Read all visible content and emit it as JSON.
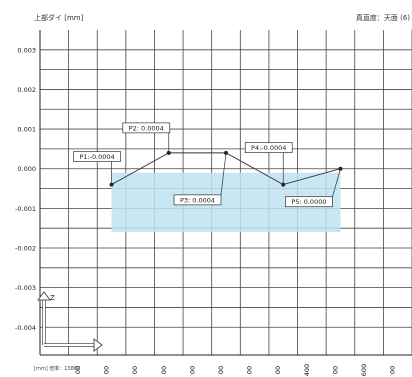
{
  "header": {
    "left_label": "上部ダイ  [mm]",
    "right_label": "真直度：天面  (6)"
  },
  "footer": {
    "scale_label": "[mm]  倍率：13860"
  },
  "chart_data": {
    "type": "line",
    "y_ticks": [
      "0.003",
      "0.002",
      "0.001",
      "0.000",
      "-0.001",
      "-0.002",
      "-0.003",
      "-0.004"
    ],
    "x_tick_labels": [
      "00",
      "00",
      "00",
      "00",
      "00",
      "00",
      "00",
      "00",
      "400",
      "00",
      "600",
      "00"
    ],
    "ylim": [
      -0.0047,
      0.0035
    ],
    "x_range": [
      -0.5,
      12.5
    ],
    "grid": true,
    "series": [
      {
        "color": "#333333",
        "x": [
          2,
          4,
          6,
          8,
          10
        ],
        "values": [
          -0.0004,
          0.0004,
          0.0004,
          -0.0004,
          0.0
        ],
        "labels": [
          "P1:-0.0004",
          "P2: 0.0004",
          "P3: 0.0004",
          "P4:-0.0004",
          "P5: 0.0000"
        ]
      }
    ],
    "tolerance_band": {
      "from": -0.0016,
      "to": -0.0001,
      "x": [
        2,
        10
      ],
      "color": "#bfe3f1"
    },
    "axis_indicator": {
      "y_label": "Z"
    }
  }
}
